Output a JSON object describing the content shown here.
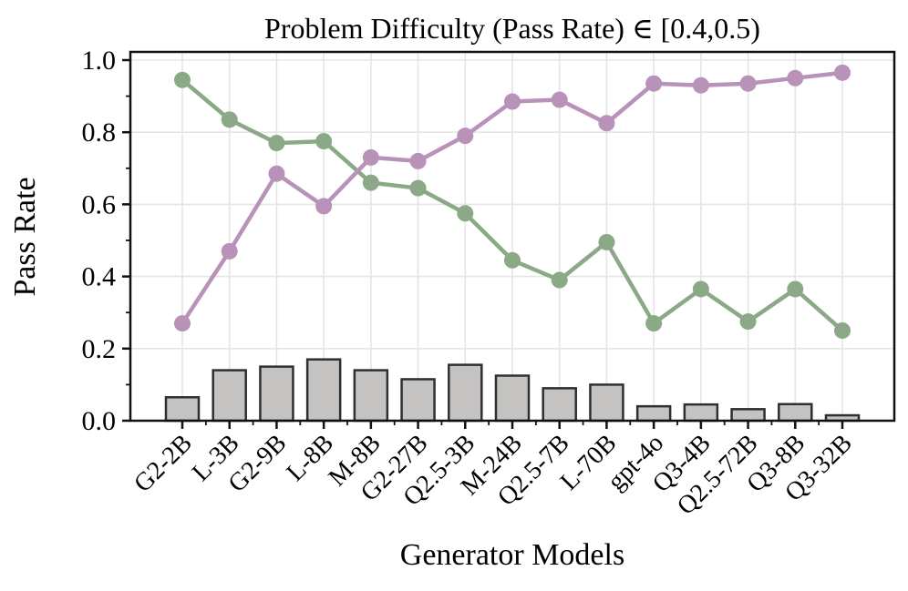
{
  "page": {
    "background": "#ffffff"
  },
  "chart_data": {
    "type": "line+bar",
    "title": "Problem Difficulty (Pass Rate) ∈ [0.4,0.5)",
    "xlabel": "Generator Models",
    "ylabel": "Pass Rate",
    "ylim": [
      0.0,
      1.02
    ],
    "yticks": [
      0.0,
      0.2,
      0.4,
      0.6,
      0.8,
      1.0
    ],
    "grid": true,
    "legend": "none",
    "frame": "full-box",
    "categories": [
      "G2-2B",
      "L-3B",
      "G2-9B",
      "L-8B",
      "M-8B",
      "G2-27B",
      "Q2.5-3B",
      "M-24B",
      "Q2.5-7B",
      "L-70B",
      "gpt-4o",
      "Q3-4B",
      "Q2.5-72B",
      "Q3-8B",
      "Q3-32B"
    ],
    "series": [
      {
        "name": "green-line",
        "type": "line",
        "color": "#8ba986",
        "values": [
          0.945,
          0.835,
          0.77,
          0.775,
          0.66,
          0.645,
          0.575,
          0.445,
          0.39,
          0.495,
          0.27,
          0.365,
          0.275,
          0.365,
          0.25
        ]
      },
      {
        "name": "purple-line",
        "type": "line",
        "color": "#b892b8",
        "values": [
          0.27,
          0.47,
          0.685,
          0.595,
          0.73,
          0.72,
          0.79,
          0.885,
          0.89,
          0.825,
          0.935,
          0.93,
          0.935,
          0.95,
          0.965
        ]
      },
      {
        "name": "gray-bars",
        "type": "bar",
        "color": "#c5c3c1",
        "edge_color": "#2f2f2f",
        "values": [
          0.065,
          0.14,
          0.15,
          0.17,
          0.14,
          0.115,
          0.155,
          0.125,
          0.09,
          0.1,
          0.04,
          0.045,
          0.032,
          0.046,
          0.015
        ]
      }
    ],
    "style": {
      "grid_color": "#e5e5e5",
      "spine_color": "#111111",
      "tick_color": "#111111"
    }
  }
}
